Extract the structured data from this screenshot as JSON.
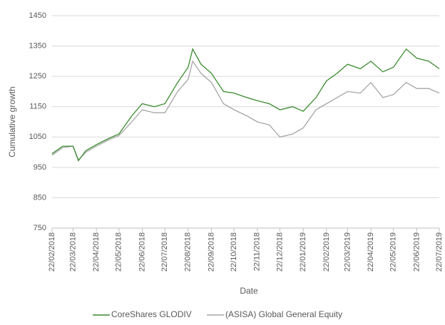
{
  "chart_data": {
    "type": "line",
    "x_label": "Date",
    "y_label": "Cumulative growth",
    "x": [
      "22/02/2018",
      "08/03/2018",
      "22/03/2018",
      "29/03/2018",
      "08/04/2018",
      "22/04/2018",
      "08/05/2018",
      "22/05/2018",
      "08/06/2018",
      "22/06/2018",
      "08/07/2018",
      "22/07/2018",
      "08/08/2018",
      "22/08/2018",
      "28/08/2018",
      "08/09/2018",
      "22/09/2018",
      "08/10/2018",
      "22/10/2018",
      "08/11/2018",
      "22/11/2018",
      "08/12/2018",
      "22/12/2018",
      "08/01/2019",
      "22/01/2019",
      "08/02/2019",
      "22/02/2019",
      "08/03/2019",
      "22/03/2019",
      "08/04/2019",
      "22/04/2019",
      "08/05/2019",
      "22/05/2019",
      "08/06/2019",
      "22/06/2019",
      "08/07/2019",
      "22/07/2019"
    ],
    "series": [
      {
        "name": "CoreShares GLODIV",
        "color": "#3a8a2e",
        "values": [
          995,
          1020,
          1020,
          972,
          1005,
          1025,
          1045,
          1060,
          1120,
          1160,
          1150,
          1160,
          1230,
          1280,
          1340,
          1290,
          1260,
          1200,
          1195,
          1180,
          1170,
          1160,
          1140,
          1150,
          1135,
          1180,
          1235,
          1260,
          1290,
          1275,
          1300,
          1265,
          1280,
          1340,
          1310,
          1300,
          1275
        ]
      },
      {
        "name": "(ASISA) Global General Equity",
        "color": "#a6a6a6",
        "values": [
          990,
          1015,
          1020,
          975,
          1000,
          1020,
          1040,
          1055,
          1100,
          1140,
          1130,
          1130,
          1200,
          1240,
          1300,
          1260,
          1230,
          1160,
          1140,
          1120,
          1100,
          1090,
          1050,
          1060,
          1080,
          1140,
          1160,
          1180,
          1200,
          1195,
          1230,
          1180,
          1190,
          1230,
          1210,
          1210,
          1195
        ]
      }
    ],
    "xlim": [
      "22/02/2018",
      "22/07/2019"
    ],
    "xticks": [
      "22/02/2018",
      "22/03/2018",
      "22/04/2018",
      "22/05/2018",
      "22/06/2018",
      "22/07/2018",
      "22/08/2018",
      "22/09/2018",
      "22/10/2018",
      "22/11/2018",
      "22/12/2018",
      "22/01/2019",
      "22/02/2019",
      "22/03/2019",
      "22/04/2019",
      "22/05/2019",
      "22/06/2019",
      "22/07/2019"
    ],
    "ylim": [
      750,
      1450
    ],
    "yticks": [
      750,
      850,
      950,
      1050,
      1150,
      1250,
      1350,
      1450
    ],
    "grid": true,
    "legend": "bottom"
  }
}
